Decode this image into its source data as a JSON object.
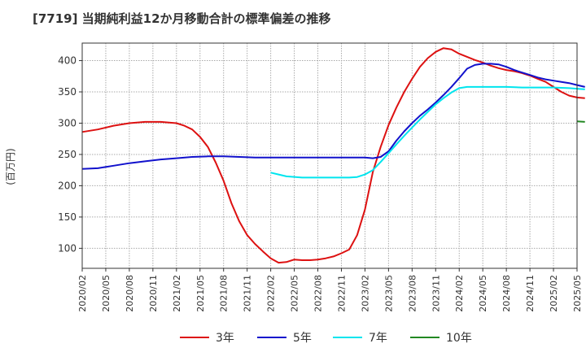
{
  "chart_data": {
    "type": "line",
    "title": "[7719]  当期純利益12か月移動合計の標準偏差の推移",
    "ylabel": "(百万円)",
    "xlabel": "",
    "ylim": [
      68,
      428
    ],
    "y_ticks": [
      100,
      150,
      200,
      250,
      300,
      350,
      400
    ],
    "x_ticks": [
      "2020/02",
      "2020/05",
      "2020/08",
      "2020/11",
      "2021/02",
      "2021/05",
      "2021/08",
      "2021/11",
      "2022/02",
      "2022/05",
      "2022/08",
      "2022/11",
      "2023/02",
      "2023/05",
      "2023/08",
      "2023/11",
      "2024/02",
      "2024/05",
      "2024/08",
      "2024/11",
      "2025/02",
      "2025/05"
    ],
    "grid": true,
    "legend_position": "bottom",
    "series": [
      {
        "name": "3年",
        "color": "#dd1111",
        "points": [
          [
            "2020/02",
            286
          ],
          [
            "2020/04",
            290
          ],
          [
            "2020/06",
            296
          ],
          [
            "2020/08",
            300
          ],
          [
            "2020/10",
            302
          ],
          [
            "2020/12",
            302
          ],
          [
            "2021/02",
            300
          ],
          [
            "2021/03",
            296
          ],
          [
            "2021/04",
            290
          ],
          [
            "2021/05",
            278
          ],
          [
            "2021/06",
            262
          ],
          [
            "2021/07",
            237
          ],
          [
            "2021/08",
            208
          ],
          [
            "2021/09",
            172
          ],
          [
            "2021/10",
            143
          ],
          [
            "2021/11",
            121
          ],
          [
            "2021/12",
            107
          ],
          [
            "2022/01",
            95
          ],
          [
            "2022/02",
            84
          ],
          [
            "2022/03",
            77
          ],
          [
            "2022/04",
            78
          ],
          [
            "2022/05",
            82
          ],
          [
            "2022/06",
            81
          ],
          [
            "2022/07",
            81
          ],
          [
            "2022/08",
            82
          ],
          [
            "2022/09",
            84
          ],
          [
            "2022/10",
            87
          ],
          [
            "2022/11",
            92
          ],
          [
            "2022/12",
            98
          ],
          [
            "2023/01",
            121
          ],
          [
            "2023/02",
            162
          ],
          [
            "2023/03",
            222
          ],
          [
            "2023/04",
            262
          ],
          [
            "2023/05",
            297
          ],
          [
            "2023/06",
            325
          ],
          [
            "2023/07",
            350
          ],
          [
            "2023/08",
            371
          ],
          [
            "2023/09",
            390
          ],
          [
            "2023/10",
            404
          ],
          [
            "2023/11",
            414
          ],
          [
            "2023/12",
            420
          ],
          [
            "2024/01",
            418
          ],
          [
            "2024/02",
            411
          ],
          [
            "2024/03",
            406
          ],
          [
            "2024/04",
            401
          ],
          [
            "2024/05",
            397
          ],
          [
            "2024/06",
            392
          ],
          [
            "2024/07",
            388
          ],
          [
            "2024/08",
            385
          ],
          [
            "2024/09",
            383
          ],
          [
            "2024/10",
            380
          ],
          [
            "2024/11",
            376
          ],
          [
            "2024/12",
            371
          ],
          [
            "2025/01",
            366
          ],
          [
            "2025/02",
            358
          ],
          [
            "2025/03",
            350
          ],
          [
            "2025/04",
            344
          ],
          [
            "2025/05",
            341
          ],
          [
            "2025/06",
            340
          ]
        ]
      },
      {
        "name": "5年",
        "color": "#1111cc",
        "points": [
          [
            "2020/02",
            227
          ],
          [
            "2020/04",
            228
          ],
          [
            "2020/06",
            232
          ],
          [
            "2020/08",
            236
          ],
          [
            "2020/10",
            239
          ],
          [
            "2020/12",
            242
          ],
          [
            "2021/02",
            244
          ],
          [
            "2021/04",
            246
          ],
          [
            "2021/06",
            247
          ],
          [
            "2021/08",
            247
          ],
          [
            "2021/10",
            246
          ],
          [
            "2021/12",
            245
          ],
          [
            "2022/02",
            245
          ],
          [
            "2022/04",
            245
          ],
          [
            "2022/06",
            245
          ],
          [
            "2022/08",
            245
          ],
          [
            "2022/10",
            245
          ],
          [
            "2022/12",
            245
          ],
          [
            "2023/02",
            245
          ],
          [
            "2023/03",
            244
          ],
          [
            "2023/04",
            246
          ],
          [
            "2023/05",
            255
          ],
          [
            "2023/06",
            272
          ],
          [
            "2023/07",
            287
          ],
          [
            "2023/08",
            300
          ],
          [
            "2023/09",
            312
          ],
          [
            "2023/10",
            322
          ],
          [
            "2023/11",
            333
          ],
          [
            "2023/12",
            345
          ],
          [
            "2024/01",
            358
          ],
          [
            "2024/02",
            372
          ],
          [
            "2024/03",
            387
          ],
          [
            "2024/04",
            393
          ],
          [
            "2024/05",
            395
          ],
          [
            "2024/06",
            395
          ],
          [
            "2024/07",
            394
          ],
          [
            "2024/08",
            390
          ],
          [
            "2024/09",
            385
          ],
          [
            "2024/10",
            381
          ],
          [
            "2024/11",
            377
          ],
          [
            "2024/12",
            373
          ],
          [
            "2025/01",
            370
          ],
          [
            "2025/02",
            368
          ],
          [
            "2025/03",
            366
          ],
          [
            "2025/04",
            364
          ],
          [
            "2025/05",
            361
          ],
          [
            "2025/06",
            358
          ]
        ]
      },
      {
        "name": "7年",
        "color": "#00e5ee",
        "points": [
          [
            "2022/02",
            221
          ],
          [
            "2022/03",
            218
          ],
          [
            "2022/04",
            215
          ],
          [
            "2022/06",
            213
          ],
          [
            "2022/08",
            213
          ],
          [
            "2022/10",
            213
          ],
          [
            "2022/12",
            213
          ],
          [
            "2023/01",
            214
          ],
          [
            "2023/02",
            218
          ],
          [
            "2023/03",
            225
          ],
          [
            "2023/04",
            238
          ],
          [
            "2023/05",
            252
          ],
          [
            "2023/06",
            266
          ],
          [
            "2023/07",
            280
          ],
          [
            "2023/08",
            293
          ],
          [
            "2023/09",
            306
          ],
          [
            "2023/10",
            318
          ],
          [
            "2023/11",
            330
          ],
          [
            "2023/12",
            340
          ],
          [
            "2024/01",
            349
          ],
          [
            "2024/02",
            356
          ],
          [
            "2024/03",
            358
          ],
          [
            "2024/04",
            358
          ],
          [
            "2024/06",
            358
          ],
          [
            "2024/08",
            358
          ],
          [
            "2024/10",
            357
          ],
          [
            "2024/12",
            357
          ],
          [
            "2025/02",
            357
          ],
          [
            "2025/04",
            356
          ],
          [
            "2025/06",
            354
          ]
        ]
      },
      {
        "name": "10年",
        "color": "#228822",
        "points": [
          [
            "2025/05",
            303
          ],
          [
            "2025/06",
            302
          ]
        ]
      }
    ]
  }
}
